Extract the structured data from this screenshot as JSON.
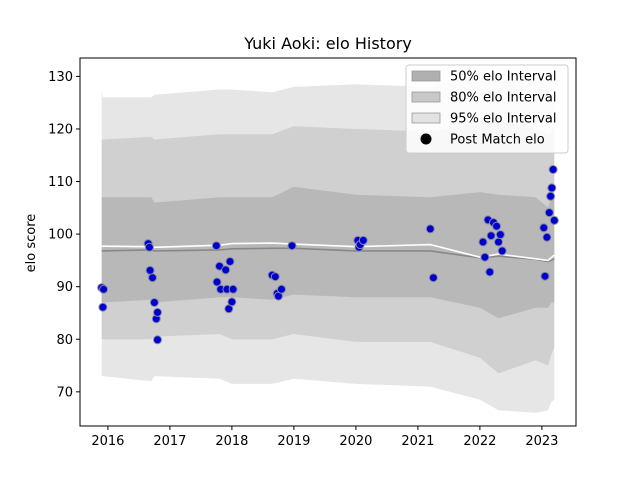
{
  "chart_data": {
    "type": "scatter",
    "title": "Yuki Aoki: elo History",
    "xlabel": "",
    "ylabel": "elo score",
    "xlim": [
      2015.55,
      2023.55
    ],
    "ylim": [
      63.5,
      133.5
    ],
    "xticks": [
      2016,
      2017,
      2018,
      2019,
      2020,
      2021,
      2022,
      2023
    ],
    "yticks": [
      70,
      80,
      90,
      100,
      110,
      120,
      130
    ],
    "legend_position": "top-right",
    "legend": {
      "band50": "50% elo Interval",
      "band80": "80% elo Interval",
      "band95": "95% elo Interval",
      "points": "Post Match elo"
    },
    "colors": {
      "band50": "#b0b0b0",
      "band80": "#c8c8c8",
      "band95": "#e2e2e2",
      "median_line": "#888888",
      "mean_line": "#ffffff",
      "point_fill": "#0000cc",
      "point_edge": "#8888aa"
    },
    "series": [
      {
        "name": "50% elo Interval",
        "x": [
          2015.9,
          2016.7,
          2016.75,
          2017.8,
          2018.0,
          2018.65,
          2019.0,
          2020.0,
          2021.2,
          2022.0,
          2022.3,
          2022.9,
          2023.1,
          2023.15,
          2023.2
        ],
        "lower": [
          87.0,
          87.5,
          87.0,
          88.0,
          88.0,
          87.5,
          88.5,
          88.0,
          88.0,
          86.0,
          84.0,
          86.0,
          86.0,
          87.0,
          87.0
        ],
        "upper": [
          107.0,
          107.0,
          106.0,
          107.0,
          107.0,
          107.0,
          109.0,
          107.5,
          107.0,
          108.0,
          107.5,
          107.0,
          105.0,
          107.0,
          107.5
        ]
      },
      {
        "name": "80% elo Interval",
        "x": [
          2015.9,
          2016.7,
          2016.75,
          2017.8,
          2018.0,
          2018.65,
          2019.0,
          2020.0,
          2021.2,
          2022.0,
          2022.3,
          2022.9,
          2023.1,
          2023.15,
          2023.2
        ],
        "lower": [
          80.0,
          80.0,
          80.5,
          81.0,
          80.0,
          80.0,
          81.0,
          79.5,
          79.5,
          76.5,
          73.5,
          76.0,
          75.0,
          77.0,
          78.5
        ],
        "upper": [
          118.0,
          118.5,
          118.0,
          119.0,
          119.0,
          119.0,
          120.5,
          120.0,
          119.5,
          121.0,
          121.5,
          120.0,
          119.0,
          119.5,
          120.5
        ]
      },
      {
        "name": "95% elo Interval",
        "x": [
          2015.9,
          2015.92,
          2016.7,
          2016.75,
          2017.8,
          2018.0,
          2018.65,
          2019.0,
          2020.0,
          2021.2,
          2022.0,
          2022.3,
          2022.9,
          2023.1,
          2023.15,
          2023.2
        ],
        "lower": [
          73.0,
          73.0,
          72.0,
          73.0,
          72.5,
          71.5,
          71.5,
          72.5,
          71.5,
          71.0,
          68.5,
          66.5,
          66.0,
          66.5,
          68.0,
          68.5
        ],
        "upper": [
          127.5,
          126.0,
          126.0,
          126.5,
          127.5,
          127.5,
          127.0,
          128.0,
          128.5,
          128.0,
          130.5,
          130.0,
          129.0,
          128.5,
          129.0,
          130.5
        ]
      },
      {
        "name": "",
        "style": "median",
        "x": [
          2015.9,
          2016.7,
          2016.75,
          2017.8,
          2018.0,
          2018.65,
          2019.0,
          2020.0,
          2021.2,
          2022.0,
          2022.3,
          2022.9,
          2023.1,
          2023.15,
          2023.2
        ],
        "y": [
          96.8,
          97.0,
          96.8,
          97.0,
          97.2,
          97.3,
          97.3,
          96.8,
          96.8,
          95.5,
          95.8,
          95.2,
          94.8,
          95.0,
          95.3
        ]
      },
      {
        "name": "",
        "style": "mean",
        "x": [
          2015.9,
          2016.7,
          2016.75,
          2017.8,
          2018.0,
          2018.65,
          2019.0,
          2020.0,
          2021.2,
          2022.0,
          2022.3,
          2022.9,
          2023.1,
          2023.15,
          2023.2
        ],
        "y": [
          97.7,
          97.6,
          97.5,
          97.9,
          98.2,
          98.3,
          98.1,
          97.6,
          98.0,
          95.6,
          96.2,
          95.3,
          95.0,
          95.5,
          96.0
        ]
      },
      {
        "name": "Post Match elo",
        "points": [
          [
            2015.9,
            89.8
          ],
          [
            2015.93,
            89.5
          ],
          [
            2015.92,
            86.1
          ],
          [
            2016.65,
            98.2
          ],
          [
            2016.67,
            97.5
          ],
          [
            2016.68,
            93.1
          ],
          [
            2016.72,
            91.7
          ],
          [
            2016.75,
            87.0
          ],
          [
            2016.78,
            83.9
          ],
          [
            2016.8,
            85.1
          ],
          [
            2016.8,
            79.9
          ],
          [
            2017.75,
            97.8
          ],
          [
            2017.76,
            90.9
          ],
          [
            2017.8,
            93.9
          ],
          [
            2017.82,
            89.5
          ],
          [
            2017.9,
            93.2
          ],
          [
            2017.92,
            89.5
          ],
          [
            2017.95,
            85.8
          ],
          [
            2017.97,
            94.8
          ],
          [
            2018.0,
            87.1
          ],
          [
            2018.02,
            89.5
          ],
          [
            2018.65,
            92.2
          ],
          [
            2018.7,
            91.9
          ],
          [
            2018.73,
            88.7
          ],
          [
            2018.75,
            88.2
          ],
          [
            2018.8,
            89.5
          ],
          [
            2018.97,
            97.8
          ],
          [
            2020.03,
            98.8
          ],
          [
            2020.05,
            97.5
          ],
          [
            2020.07,
            98.0
          ],
          [
            2020.12,
            98.8
          ],
          [
            2021.2,
            101.0
          ],
          [
            2021.25,
            91.7
          ],
          [
            2022.05,
            98.5
          ],
          [
            2022.08,
            95.6
          ],
          [
            2022.13,
            102.7
          ],
          [
            2022.18,
            99.7
          ],
          [
            2022.16,
            92.8
          ],
          [
            2022.22,
            102.2
          ],
          [
            2022.27,
            101.5
          ],
          [
            2022.3,
            98.5
          ],
          [
            2022.33,
            99.9
          ],
          [
            2022.36,
            96.8
          ],
          [
            2023.03,
            101.2
          ],
          [
            2023.05,
            92.0
          ],
          [
            2023.08,
            99.4
          ],
          [
            2023.12,
            104.1
          ],
          [
            2023.14,
            107.2
          ],
          [
            2023.16,
            108.8
          ],
          [
            2023.18,
            112.3
          ],
          [
            2023.2,
            102.6
          ]
        ]
      }
    ]
  }
}
